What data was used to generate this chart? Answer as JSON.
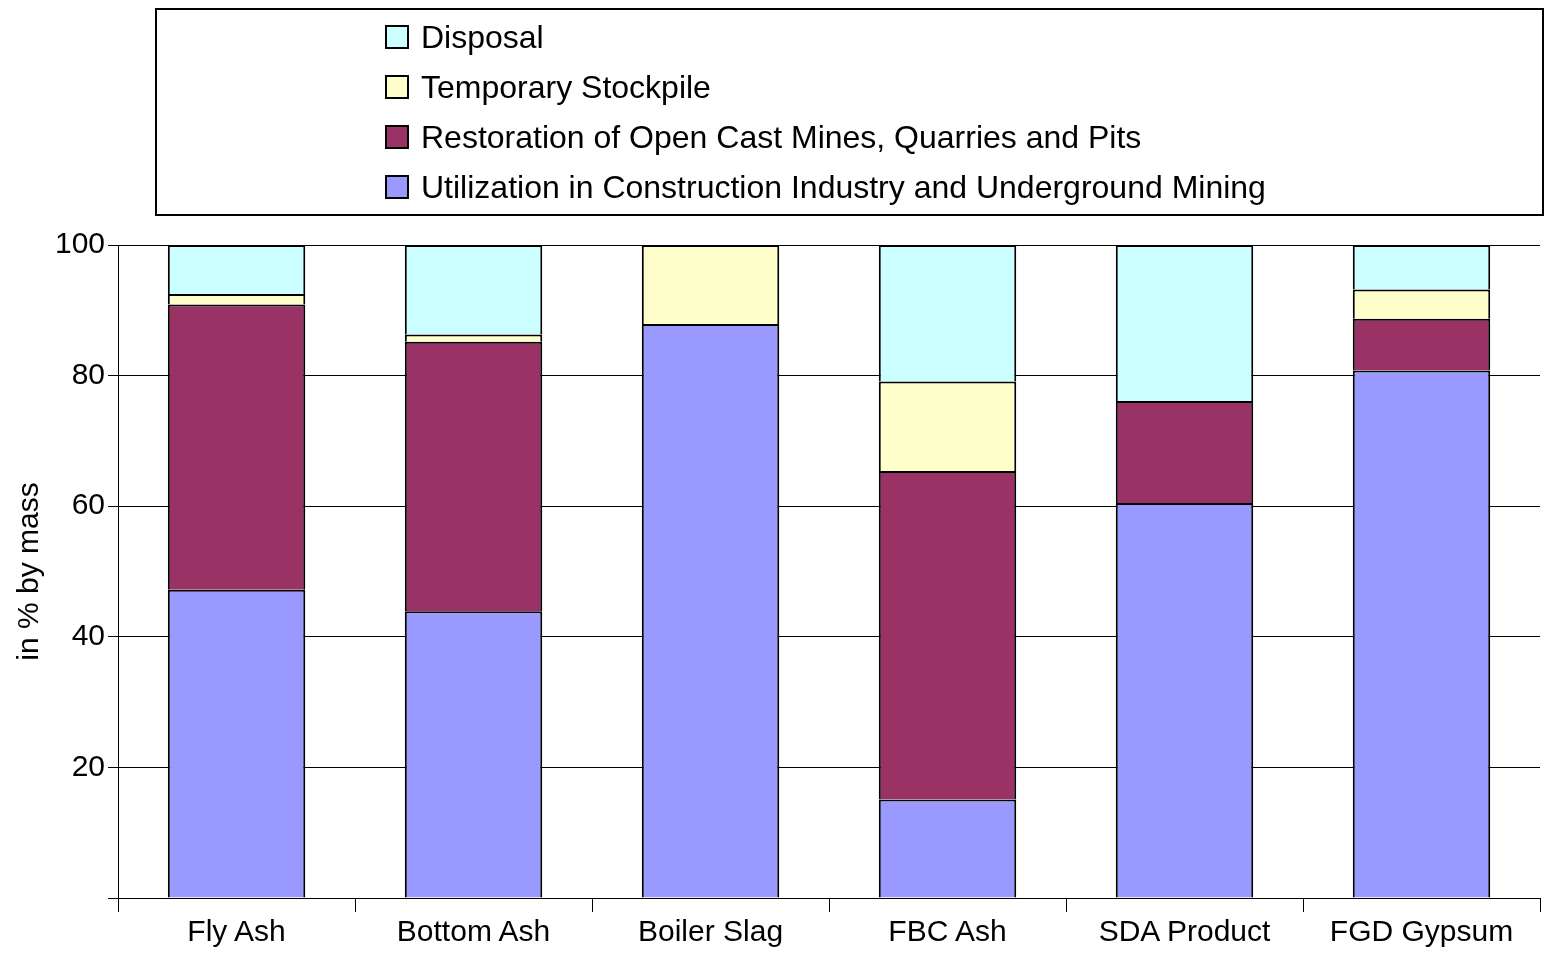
{
  "chart_data": {
    "type": "bar",
    "stacked": true,
    "ylabel": "in % by mass",
    "categories": [
      "Fly Ash",
      "Bottom Ash",
      "Boiler Slag",
      "FBC Ash",
      "SDA Product",
      "FGD Gypsum"
    ],
    "series": [
      {
        "name": "Utilization in Construction Industry and Underground Mining",
        "color": "#9999ff",
        "values": [
          47.2,
          43.9,
          87.9,
          15.1,
          60.5,
          80.8
        ]
      },
      {
        "name": "Restoration of Open Cast Mines, Quarries and Pits",
        "color": "#993366",
        "values": [
          43.7,
          41.3,
          null,
          50.3,
          15.6,
          7.9
        ]
      },
      {
        "name": "Temporary Stockpile",
        "color": "#ffffcc",
        "values": [
          1.6,
          1.1,
          12.1,
          13.7,
          null,
          4.5
        ]
      },
      {
        "name": "Disposal",
        "color": "#ccffff",
        "values": [
          7.5,
          13.7,
          null,
          20.9,
          23.9,
          6.8
        ]
      }
    ],
    "ylim": [
      0,
      100
    ],
    "yticks": [
      {
        "value": 0,
        "label": null
      },
      20,
      40,
      60,
      80,
      100
    ],
    "grid": "y",
    "legend": "top"
  }
}
